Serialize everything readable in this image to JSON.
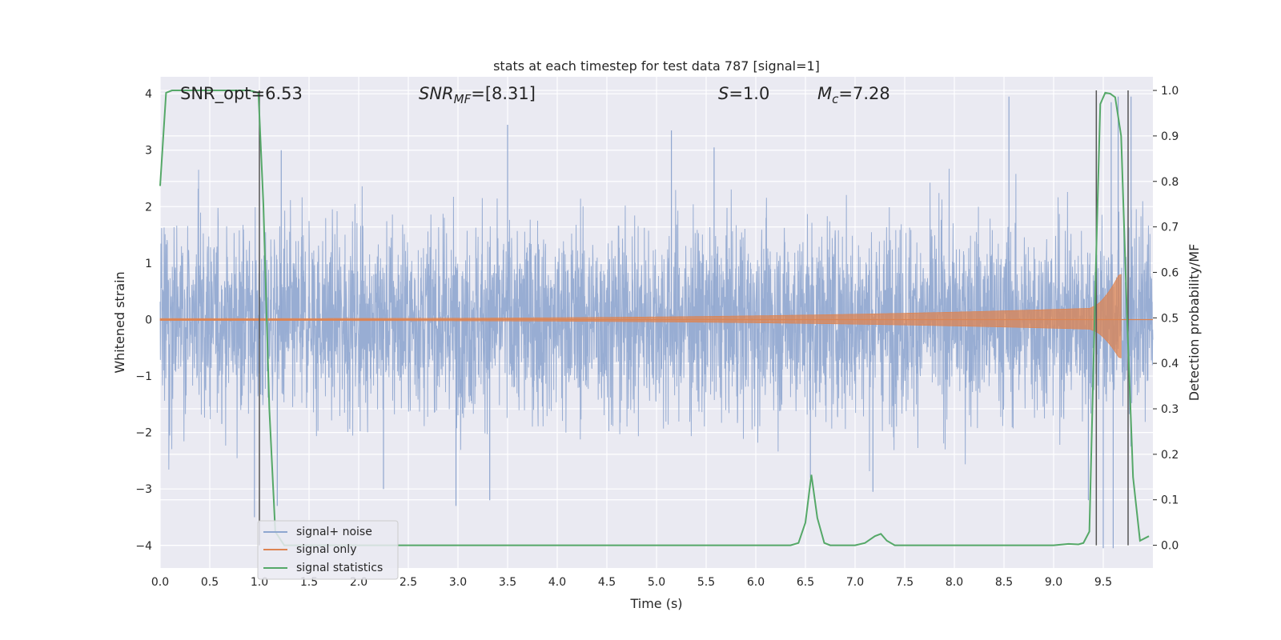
{
  "chart_data": {
    "type": "line",
    "title": "stats at each timestep for test data 787 [signal=1]",
    "xlabel": "Time (s)",
    "ylabel_left": "Whitened strain",
    "ylabel_right": "Detection probability/MF",
    "xlim": [
      0.0,
      10.0
    ],
    "ylim_left": [
      -4.4,
      4.3
    ],
    "ylim_right": [
      -0.05,
      1.03
    ],
    "xticks": [
      0.0,
      0.5,
      1.0,
      1.5,
      2.0,
      2.5,
      3.0,
      3.5,
      4.0,
      4.5,
      5.0,
      5.5,
      6.0,
      6.5,
      7.0,
      7.5,
      8.0,
      8.5,
      9.0,
      9.5
    ],
    "xtick_labels": [
      "0.0",
      "0.5",
      "1.0",
      "1.5",
      "2.0",
      "2.5",
      "3.0",
      "3.5",
      "4.0",
      "4.5",
      "5.0",
      "5.5",
      "6.0",
      "6.5",
      "7.0",
      "7.5",
      "8.0",
      "8.5",
      "9.0",
      "9.5"
    ],
    "yticks_left": [
      -4,
      -3,
      -2,
      -1,
      0,
      1,
      2,
      3,
      4
    ],
    "ytick_labels_left": [
      "−4",
      "−3",
      "−2",
      "−1",
      "0",
      "1",
      "2",
      "3",
      "4"
    ],
    "yticks_right": [
      0.0,
      0.1,
      0.2,
      0.3,
      0.4,
      0.5,
      0.6,
      0.7,
      0.8,
      0.9,
      1.0
    ],
    "ytick_labels_right": [
      "0.0",
      "0.1",
      "0.2",
      "0.3",
      "0.4",
      "0.5",
      "0.6",
      "0.7",
      "0.8",
      "0.9",
      "1.0"
    ],
    "grid": true,
    "legend_position": "bottom-left",
    "annotations": {
      "snr_opt": "SNR_opt=6.53",
      "snr_mf_sym": "SNR",
      "snr_mf_sub": "MF",
      "snr_mf_val": "=[8.31]",
      "s_sym": "S",
      "s_val": "=1.0",
      "mc_sym": "M",
      "mc_sub": "c",
      "mc_val": "=7.28"
    },
    "vlines_x": [
      1.0,
      9.43,
      9.75
    ],
    "series": [
      {
        "name": "signal+ noise",
        "color": "#8fa6cf",
        "kind": "noise",
        "samples_per_second": 400,
        "envelope_std": 0.85,
        "peak_extremes": [
          {
            "x": 0.95,
            "y": -3.5
          },
          {
            "x": 1.18,
            "y": -3.3
          },
          {
            "x": 1.22,
            "y": 3.0
          },
          {
            "x": 2.25,
            "y": -3.0
          },
          {
            "x": 2.98,
            "y": -3.3
          },
          {
            "x": 3.32,
            "y": -3.2
          },
          {
            "x": 3.5,
            "y": 3.45
          },
          {
            "x": 5.15,
            "y": 3.35
          },
          {
            "x": 5.58,
            "y": 3.05
          },
          {
            "x": 6.55,
            "y": -2.8
          },
          {
            "x": 7.18,
            "y": -3.05
          },
          {
            "x": 8.55,
            "y": 3.95
          },
          {
            "x": 9.35,
            "y": -3.2
          },
          {
            "x": 9.5,
            "y": -4.05
          },
          {
            "x": 9.6,
            "y": -4.05
          },
          {
            "x": 9.58,
            "y": 3.85
          },
          {
            "x": 9.65,
            "y": 3.95
          },
          {
            "x": 9.78,
            "y": 3.95
          }
        ]
      },
      {
        "name": "signal only",
        "color": "#dd8452",
        "kind": "chirp",
        "amplitude_start": 0.02,
        "amplitude_end": 0.8,
        "merger_time": 9.68
      },
      {
        "name": "signal statistics",
        "color": "#55a868",
        "axis": "right",
        "x": [
          0.0,
          0.06,
          0.12,
          0.3,
          0.5,
          0.7,
          0.9,
          0.99,
          1.04,
          1.1,
          1.16,
          1.25,
          1.5,
          2.0,
          3.0,
          4.0,
          5.0,
          6.0,
          6.35,
          6.43,
          6.5,
          6.56,
          6.62,
          6.69,
          6.75,
          7.0,
          7.1,
          7.2,
          7.26,
          7.32,
          7.4,
          7.5,
          8.0,
          8.5,
          9.0,
          9.15,
          9.25,
          9.3,
          9.36,
          9.43,
          9.47,
          9.52,
          9.57,
          9.62,
          9.68,
          9.74,
          9.8,
          9.87,
          9.96
        ],
        "y": [
          0.79,
          0.995,
          1.0,
          1.0,
          1.0,
          1.0,
          1.0,
          0.995,
          0.75,
          0.3,
          0.03,
          0.0,
          0.0,
          0.0,
          0.0,
          0.0,
          0.0,
          0.0,
          0.0,
          0.005,
          0.05,
          0.155,
          0.06,
          0.005,
          0.0,
          0.0,
          0.005,
          0.02,
          0.025,
          0.01,
          0.0,
          0.0,
          0.0,
          0.0,
          0.0,
          0.003,
          0.002,
          0.005,
          0.03,
          0.65,
          0.97,
          0.995,
          0.993,
          0.985,
          0.9,
          0.5,
          0.15,
          0.01,
          0.02
        ]
      }
    ]
  }
}
